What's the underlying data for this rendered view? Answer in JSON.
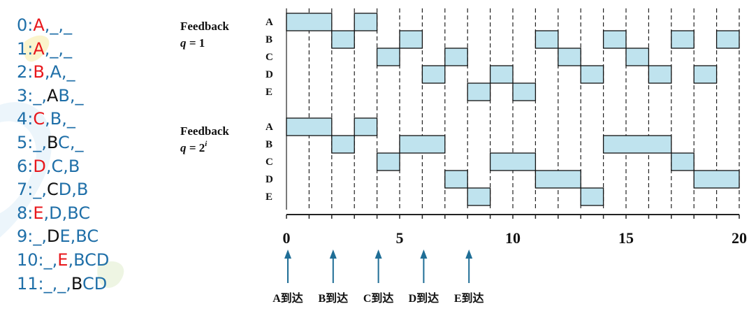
{
  "colors": {
    "trace_text": "#1f6fa8",
    "running": "#e8171c",
    "queue_head": "#111111",
    "bar_fill": "#bfe3ee",
    "bar_stroke": "#111111",
    "arrow": "#1f6e96"
  },
  "trace": [
    {
      "t": "0:",
      "run": "A",
      "q1": "_",
      "q2": "_"
    },
    {
      "t": "1:",
      "run": "A",
      "q1": "_",
      "q2": "_"
    },
    {
      "t": "2:",
      "run": "B",
      "q1": "A",
      "q2": "_"
    },
    {
      "t": "3:",
      "run": "_",
      "q1": "AB",
      "q1_head": "A",
      "q1_rest": "B",
      "q2": "_"
    },
    {
      "t": "4:",
      "run": "C",
      "q1": "B",
      "q2": "_"
    },
    {
      "t": "5:",
      "run": "_",
      "q1": "BC",
      "q1_head": "B",
      "q1_rest": "C",
      "q2": "_"
    },
    {
      "t": "6:",
      "run": "D",
      "q1": "C",
      "q2": "B"
    },
    {
      "t": "7:",
      "run": "_",
      "q1": "CD",
      "q1_head": "C",
      "q1_rest": "D",
      "q2": "B"
    },
    {
      "t": "8:",
      "run": "E",
      "q1": "D",
      "q2": "BC"
    },
    {
      "t": "9:",
      "run": "_",
      "q1": "DE",
      "q1_head": "D",
      "q1_rest": "E",
      "q2": "BC"
    },
    {
      "t": "10:",
      "run": "_",
      "q1": "E",
      "q1_is_running": true,
      "q2": "BCD"
    },
    {
      "t": "11:",
      "run": "_",
      "q1": "_",
      "q2": "BCD",
      "q2_head": "B",
      "q2_rest": "CD"
    }
  ],
  "diagram": {
    "processes": [
      "A",
      "B",
      "C",
      "D",
      "E"
    ],
    "time_axis": {
      "min": 0,
      "max": 20,
      "tick_labels": [
        0,
        5,
        10,
        15,
        20
      ]
    },
    "panels": [
      {
        "label_line1": "Feedback",
        "label_line2_prefix": "q = ",
        "label_line2_value": "1",
        "label_line2_sup": "",
        "intervals": [
          {
            "p": "A",
            "start": 0,
            "end": 2
          },
          {
            "p": "B",
            "start": 2,
            "end": 3
          },
          {
            "p": "A",
            "start": 3,
            "end": 4
          },
          {
            "p": "C",
            "start": 4,
            "end": 5
          },
          {
            "p": "B",
            "start": 5,
            "end": 6
          },
          {
            "p": "D",
            "start": 6,
            "end": 7
          },
          {
            "p": "C",
            "start": 7,
            "end": 8
          },
          {
            "p": "E",
            "start": 8,
            "end": 9
          },
          {
            "p": "D",
            "start": 9,
            "end": 10
          },
          {
            "p": "E",
            "start": 10,
            "end": 11
          },
          {
            "p": "B",
            "start": 11,
            "end": 12
          },
          {
            "p": "C",
            "start": 12,
            "end": 13
          },
          {
            "p": "D",
            "start": 13,
            "end": 14
          },
          {
            "p": "B",
            "start": 14,
            "end": 15
          },
          {
            "p": "C",
            "start": 15,
            "end": 16
          },
          {
            "p": "D",
            "start": 16,
            "end": 17
          },
          {
            "p": "B",
            "start": 17,
            "end": 18
          },
          {
            "p": "D",
            "start": 18,
            "end": 19
          },
          {
            "p": "B",
            "start": 19,
            "end": 20
          }
        ]
      },
      {
        "label_line1": "Feedback",
        "label_line2_prefix": "q = ",
        "label_line2_value": "2",
        "label_line2_sup": "i",
        "intervals": [
          {
            "p": "A",
            "start": 0,
            "end": 2
          },
          {
            "p": "B",
            "start": 2,
            "end": 3
          },
          {
            "p": "A",
            "start": 3,
            "end": 4
          },
          {
            "p": "C",
            "start": 4,
            "end": 5
          },
          {
            "p": "B",
            "start": 5,
            "end": 7
          },
          {
            "p": "D",
            "start": 7,
            "end": 8
          },
          {
            "p": "E",
            "start": 8,
            "end": 9
          },
          {
            "p": "C",
            "start": 9,
            "end": 11
          },
          {
            "p": "D",
            "start": 11,
            "end": 13
          },
          {
            "p": "E",
            "start": 13,
            "end": 14
          },
          {
            "p": "B",
            "start": 14,
            "end": 17
          },
          {
            "p": "C",
            "start": 17,
            "end": 18
          },
          {
            "p": "D",
            "start": 18,
            "end": 20
          }
        ]
      }
    ],
    "arrivals": [
      {
        "time": 0,
        "label": "A到达"
      },
      {
        "time": 2,
        "label": "B到达"
      },
      {
        "time": 4,
        "label": "C到达"
      },
      {
        "time": 6,
        "label": "D到达"
      },
      {
        "time": 8,
        "label": "E到达"
      }
    ]
  }
}
